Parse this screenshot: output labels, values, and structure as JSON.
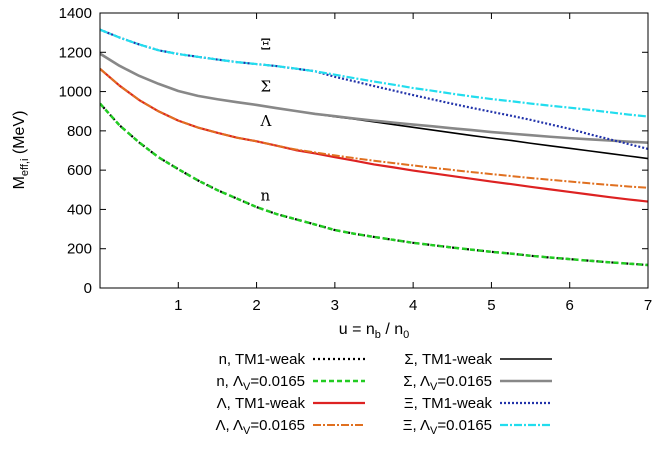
{
  "chart_data": {
    "type": "line",
    "xlabel": "u = n_b / n_0",
    "xlabel_parts": {
      "prefix": "u = n",
      "sub1": "b",
      "mid": " / n",
      "sub2": "0"
    },
    "ylabel": "M_eff,i (MeV)",
    "ylabel_parts": {
      "main": "M",
      "sub": "eff,i",
      "suffix": " (MeV)"
    },
    "xlim": [
      0,
      7
    ],
    "ylim": [
      0,
      1400
    ],
    "xticks": [
      1,
      2,
      3,
      4,
      5,
      6,
      7
    ],
    "xtick_labels": [
      "1",
      "2",
      "3",
      "4",
      "5",
      "6",
      "7"
    ],
    "yticks": [
      0,
      200,
      400,
      600,
      800,
      1000,
      1200,
      1400
    ],
    "ytick_labels": [
      "0",
      "200",
      "400",
      "600",
      "800",
      "1000",
      "1200",
      "1400"
    ],
    "x": [
      0,
      0.25,
      0.5,
      0.75,
      1,
      1.25,
      1.5,
      1.75,
      2,
      2.25,
      2.5,
      2.75,
      3,
      3.25,
      3.5,
      3.75,
      4,
      4.25,
      4.5,
      4.75,
      5,
      5.25,
      5.5,
      5.75,
      6,
      6.25,
      6.5,
      6.75,
      7
    ],
    "series": [
      {
        "name": "n, TM1-weak",
        "color": "#000000",
        "dash": "2,3",
        "width": 2.2,
        "values": [
          939,
          828,
          741,
          665,
          605,
          548,
          498,
          455,
          412,
          377,
          350,
          323,
          295,
          276,
          260,
          245,
          230,
          218,
          206,
          195,
          184,
          175,
          164,
          155,
          147,
          139,
          131,
          124,
          117
        ]
      },
      {
        "name": "n, Λ_V=0.0165",
        "color": "#22cc22",
        "dash": "5,3",
        "width": 2.5,
        "values": [
          939,
          828,
          741,
          665,
          605,
          548,
          498,
          455,
          412,
          377,
          350,
          323,
          295,
          276,
          260,
          245,
          230,
          218,
          206,
          195,
          184,
          175,
          164,
          155,
          147,
          139,
          131,
          124,
          117
        ]
      },
      {
        "name": "Λ, TM1-weak",
        "color": "#dd2222",
        "dash": "",
        "width": 2.2,
        "values": [
          1116,
          1030,
          957,
          899,
          852,
          817,
          790,
          765,
          747,
          725,
          702,
          685,
          666,
          648,
          629,
          614,
          598,
          584,
          570,
          556,
          542,
          529,
          515,
          502,
          489,
          476,
          463,
          451,
          440
        ]
      },
      {
        "name": "Λ, Λ_V=0.0165",
        "color": "#e07020",
        "dash": "8,2,2,2",
        "width": 2.0,
        "values": [
          1116,
          1030,
          957,
          899,
          852,
          817,
          790,
          765,
          747,
          725,
          705,
          690,
          675,
          661,
          648,
          636,
          624,
          612,
          601,
          590,
          580,
          570,
          560,
          551,
          542,
          533,
          525,
          517,
          510
        ]
      },
      {
        "name": "Σ, TM1-weak",
        "color": "#000000",
        "dash": "",
        "width": 1.6,
        "values": [
          1193,
          1131,
          1080,
          1039,
          1003,
          978,
          961,
          946,
          932,
          916,
          901,
          886,
          872,
          860,
          846,
          832,
          818,
          804,
          790,
          776,
          763,
          751,
          737,
          724,
          711,
          698,
          685,
          672,
          659
        ]
      },
      {
        "name": "Σ, Λ_V=0.0165",
        "color": "#888888",
        "dash": "",
        "width": 2.6,
        "values": [
          1193,
          1131,
          1080,
          1039,
          1003,
          978,
          961,
          946,
          932,
          916,
          901,
          886,
          875,
          863,
          852,
          842,
          832,
          823,
          813,
          804,
          794,
          786,
          778,
          770,
          763,
          757,
          751,
          745,
          740
        ]
      },
      {
        "name": "Ξ, TM1-weak",
        "color": "#2233aa",
        "dash": "2,2",
        "width": 2.2,
        "values": [
          1315,
          1275,
          1240,
          1210,
          1191,
          1177,
          1163,
          1150,
          1140,
          1130,
          1117,
          1103,
          1075,
          1052,
          1028,
          1005,
          982,
          960,
          938,
          917,
          897,
          877,
          856,
          833,
          810,
          783,
          758,
          733,
          708
        ]
      },
      {
        "name": "Ξ, Λ_V=0.0165",
        "color": "#22ddee",
        "dash": "8,2,2,2",
        "width": 2.2,
        "values": [
          1315,
          1275,
          1240,
          1210,
          1191,
          1177,
          1163,
          1150,
          1140,
          1130,
          1117,
          1103,
          1086,
          1068,
          1051,
          1035,
          1018,
          1004,
          989,
          975,
          962,
          951,
          939,
          928,
          918,
          907,
          895,
          883,
          873
        ]
      }
    ],
    "annotations": [
      {
        "text": "Ξ",
        "x": 2.05,
        "y": 1215
      },
      {
        "text": "Σ",
        "x": 2.05,
        "y": 1000
      },
      {
        "text": "Λ",
        "x": 2.05,
        "y": 825
      },
      {
        "text": "n",
        "x": 2.05,
        "y": 445
      }
    ],
    "legend": {
      "placement": "bottom",
      "columns": 2,
      "entries": [
        {
          "label": "n, TM1-weak",
          "series": 0
        },
        {
          "label": "Σ, TM1-weak",
          "series": 4
        },
        {
          "label": "n, Λ_V=0.0165",
          "series": 1
        },
        {
          "label": "Σ, Λ_V=0.0165",
          "series": 5
        },
        {
          "label": "Λ, TM1-weak",
          "series": 2
        },
        {
          "label": "Ξ, TM1-weak",
          "series": 6
        },
        {
          "label": "Λ, Λ_V=0.0165",
          "series": 3
        },
        {
          "label": "Ξ, Λ_V=0.0165",
          "series": 7
        }
      ]
    }
  }
}
